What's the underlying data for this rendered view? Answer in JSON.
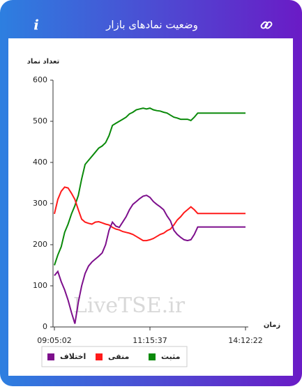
{
  "header": {
    "title": "وضعیت نمادهای بازار",
    "info_icon": "i"
  },
  "chart_data": {
    "type": "line",
    "y_label": "تعداد نماد",
    "x_label": "زمان",
    "watermark": "LiveTSE.ir",
    "categories": [
      "09:05:02",
      null,
      null,
      null,
      null,
      null,
      null,
      null,
      null,
      null,
      null,
      null,
      null,
      null,
      null,
      null,
      null,
      null,
      null,
      null,
      null,
      null,
      null,
      null,
      null,
      null,
      null,
      null,
      "11:15:37",
      null,
      null,
      null,
      null,
      null,
      null,
      null,
      null,
      null,
      null,
      null,
      null,
      null,
      null,
      null,
      null,
      null,
      null,
      null,
      null,
      null,
      null,
      null,
      null,
      null,
      null,
      null,
      "14:12:22"
    ],
    "series": [
      {
        "name": "مثبت",
        "color": "#0a8a0a",
        "values": [
          150,
          175,
          195,
          230,
          250,
          275,
          295,
          320,
          360,
          395,
          405,
          415,
          425,
          435,
          440,
          448,
          465,
          490,
          495,
          500,
          505,
          510,
          518,
          522,
          528,
          530,
          532,
          530,
          532,
          528,
          526,
          525,
          522,
          520,
          515,
          510,
          508,
          505,
          505,
          505,
          502,
          510,
          520,
          520,
          520,
          520,
          520,
          520,
          520,
          520,
          520,
          520,
          520,
          520,
          520,
          520,
          520
        ]
      },
      {
        "name": "منفی",
        "color": "#ff1a1a",
        "values": [
          275,
          310,
          330,
          340,
          338,
          325,
          310,
          285,
          262,
          255,
          252,
          250,
          255,
          256,
          253,
          250,
          248,
          242,
          238,
          236,
          232,
          230,
          228,
          225,
          220,
          215,
          210,
          210,
          212,
          215,
          220,
          225,
          228,
          234,
          238,
          248,
          260,
          268,
          278,
          285,
          292,
          285,
          276,
          276,
          276,
          276,
          276,
          276,
          276,
          276,
          276,
          276,
          276,
          276,
          276,
          276,
          276
        ]
      },
      {
        "name": "اختلاف",
        "color": "#7d0f8c",
        "values": [
          125,
          135,
          110,
          90,
          65,
          35,
          8,
          60,
          100,
          130,
          148,
          158,
          165,
          172,
          180,
          200,
          235,
          255,
          245,
          242,
          255,
          268,
          285,
          298,
          305,
          312,
          318,
          320,
          315,
          305,
          298,
          292,
          285,
          270,
          258,
          235,
          225,
          218,
          212,
          210,
          212,
          225,
          243,
          243,
          243,
          243,
          243,
          243,
          243,
          243,
          243,
          243,
          243,
          243,
          243,
          243,
          243
        ]
      }
    ],
    "ylim": [
      0,
      600
    ],
    "yticks": [
      0,
      100,
      200,
      300,
      400,
      500,
      600
    ],
    "grid": false
  }
}
